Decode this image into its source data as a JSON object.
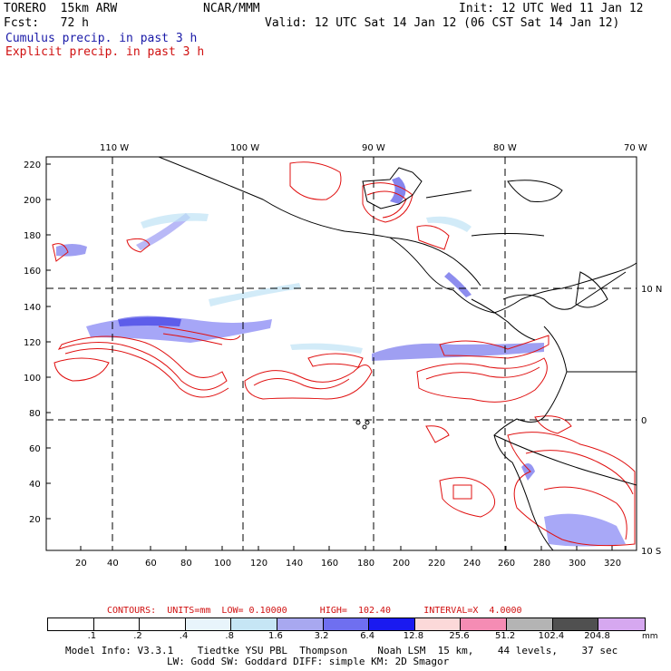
{
  "header": {
    "model": "TORERO  15km ARW",
    "org": "NCAR/MMM",
    "init": "Init: 12 UTC Wed 11 Jan 12",
    "fcst": "Fcst:   72 h",
    "valid": "Valid: 12 UTC Sat 14 Jan 12 (06 CST Sat 14 Jan 12)",
    "legend_cumulus": "Cumulus precip. in past 3 h",
    "legend_explicit": "Explicit precip. in past 3 h"
  },
  "map": {
    "lon_labels": [
      "110 W",
      "100 W",
      "90 W",
      "80 W",
      "70 W"
    ],
    "lat_labels": [
      "10 N",
      "0",
      "10 S"
    ],
    "y_ticks": [
      "220",
      "200",
      "180",
      "160",
      "140",
      "120",
      "100",
      "80",
      "60",
      "40",
      "20"
    ],
    "x_ticks": [
      "20",
      "40",
      "60",
      "80",
      "100",
      "120",
      "140",
      "160",
      "180",
      "200",
      "220",
      "240",
      "260",
      "280",
      "300",
      "320"
    ],
    "land_outline_color": "#000000",
    "cumulus_color": "#2020e0",
    "explicit_color": "#e01010"
  },
  "footer": {
    "contours_text": "CONTOURS:  UNITS=mm  LOW= 0.10000      HIGH=  102.40      INTERVAL=X  4.0000",
    "colorbar_labels": [
      ".1",
      ".2",
      ".4",
      ".8",
      "1.6",
      "3.2",
      "6.4",
      "12.8",
      "25.6",
      "51.2",
      "102.4",
      "204.8"
    ],
    "colorbar_colors": [
      "#ffffff",
      "#ffffff",
      "#ffffff",
      "#e8f4fb",
      "#c6e6f5",
      "#a8a8f0",
      "#6f6ff0",
      "#1a1af0",
      "#fcd9d9",
      "#f58cb4",
      "#b4b4b4",
      "#505050",
      "#d6a8f0"
    ],
    "units": "mm",
    "info_line1": "Model Info: V3.3.1    Tiedtke YSU PBL  Thompson     Noah LSM  15 km,    44 levels,    37 sec",
    "info_line2": "LW: Godd SW: Goddard DIFF: simple KM: 2D Smagor"
  }
}
